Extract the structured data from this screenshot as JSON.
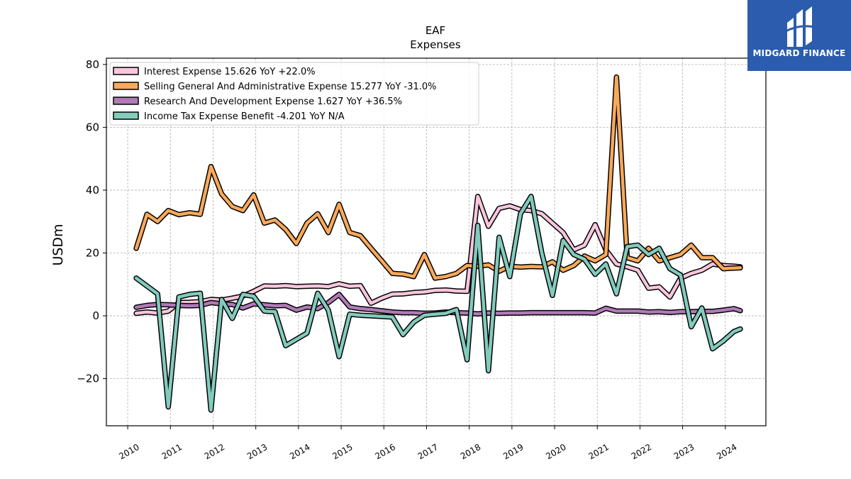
{
  "brand": {
    "name": "MIDGARD FINANCE",
    "colors": {
      "background": "#2b5cad",
      "text": "#ffffff"
    }
  },
  "chart_data": {
    "type": "line",
    "title": "EAF",
    "subtitle": "Expenses",
    "xlabel": "",
    "ylabel": "USDm",
    "xlim": [
      2009.5,
      2024.95
    ],
    "ylim": [
      -35,
      82
    ],
    "x_ticks": [
      2010,
      2011,
      2012,
      2013,
      2014,
      2015,
      2016,
      2017,
      2018,
      2019,
      2020,
      2021,
      2022,
      2023,
      2024
    ],
    "y_ticks": [
      -20,
      0,
      20,
      40,
      60,
      80
    ],
    "grid": true,
    "legend_position": "top-left",
    "series": [
      {
        "name": "Interest Expense  15.626 YoY +22.0%",
        "color": "#f9c6dd",
        "x": [
          2010.2,
          2010.45,
          2010.7,
          2010.95,
          2011.2,
          2011.45,
          2011.7,
          2011.95,
          2012.2,
          2012.45,
          2012.7,
          2012.95,
          2013.2,
          2013.45,
          2013.7,
          2013.95,
          2014.2,
          2014.45,
          2014.7,
          2014.95,
          2015.2,
          2015.45,
          2015.7,
          2015.95,
          2016.2,
          2016.45,
          2016.7,
          2016.95,
          2017.2,
          2017.45,
          2017.7,
          2017.95,
          2018.2,
          2018.45,
          2018.7,
          2018.95,
          2019.2,
          2019.45,
          2019.7,
          2019.95,
          2020.2,
          2020.45,
          2020.7,
          2020.95,
          2021.2,
          2021.45,
          2021.7,
          2021.95,
          2022.2,
          2022.45,
          2022.7,
          2022.95,
          2023.2,
          2023.45,
          2023.7,
          2023.95,
          2024.2,
          2024.35
        ],
        "values": [
          0.8,
          1.2,
          0.9,
          1.5,
          4.2,
          4.3,
          4.5,
          5.2,
          5.0,
          5.6,
          6.3,
          7.8,
          9.5,
          9.4,
          9.6,
          9.3,
          9.4,
          9.5,
          9.3,
          10.2,
          9.4,
          9.6,
          4.0,
          5.6,
          6.9,
          7.0,
          7.4,
          7.6,
          8.1,
          8.2,
          7.9,
          7.8,
          38.0,
          28.5,
          34.2,
          35.0,
          33.8,
          33.5,
          32.5,
          29.5,
          26.5,
          21.0,
          22.5,
          29.0,
          21.0,
          16.5,
          15.6,
          14.5,
          8.8,
          9.2,
          6.0,
          12.0,
          13.5,
          14.5,
          16.5,
          16.0,
          15.8,
          15.6
        ]
      },
      {
        "name": "Selling General And Administrative Expense  15.277 YoY -31.0%",
        "color": "#f9a95a",
        "x": [
          2010.2,
          2010.45,
          2010.7,
          2010.95,
          2011.2,
          2011.45,
          2011.7,
          2011.95,
          2012.2,
          2012.45,
          2012.7,
          2012.95,
          2013.2,
          2013.45,
          2013.7,
          2013.95,
          2014.2,
          2014.45,
          2014.7,
          2014.95,
          2015.2,
          2015.45,
          2015.7,
          2015.95,
          2016.2,
          2016.45,
          2016.7,
          2016.95,
          2017.2,
          2017.45,
          2017.7,
          2017.95,
          2018.2,
          2018.45,
          2018.7,
          2018.95,
          2019.2,
          2019.45,
          2019.7,
          2019.95,
          2020.2,
          2020.45,
          2020.7,
          2020.95,
          2021.2,
          2021.45,
          2021.7,
          2021.95,
          2022.2,
          2022.45,
          2022.7,
          2022.95,
          2023.2,
          2023.45,
          2023.7,
          2023.95,
          2024.2,
          2024.35
        ],
        "values": [
          21.5,
          32.3,
          30.0,
          33.5,
          32.2,
          32.8,
          32.3,
          47.5,
          38.8,
          34.8,
          33.5,
          38.5,
          29.5,
          30.5,
          27.5,
          23.0,
          29.5,
          32.5,
          26.5,
          35.5,
          26.5,
          25.5,
          21.5,
          17.5,
          13.5,
          13.3,
          12.5,
          19.5,
          12.0,
          12.5,
          13.5,
          16.0,
          15.8,
          16.2,
          14.2,
          15.8,
          15.5,
          15.7,
          15.6,
          17.2,
          14.5,
          16.0,
          19.0,
          17.5,
          19.5,
          76.0,
          18.5,
          17.5,
          21.5,
          17.5,
          18.5,
          19.5,
          22.5,
          18.5,
          18.5,
          15.0,
          15.2,
          15.277
        ]
      },
      {
        "name": "Research And Development Expense  1.627 YoY +36.5%",
        "color": "#b07ab8",
        "x": [
          2010.2,
          2010.45,
          2010.7,
          2010.95,
          2011.2,
          2011.45,
          2011.7,
          2011.95,
          2012.2,
          2012.45,
          2012.7,
          2012.95,
          2013.2,
          2013.45,
          2013.7,
          2013.95,
          2014.2,
          2014.45,
          2014.7,
          2014.95,
          2015.2,
          2015.45,
          2015.7,
          2015.95,
          2016.2,
          2016.45,
          2016.7,
          2016.95,
          2017.2,
          2017.45,
          2017.7,
          2017.95,
          2018.2,
          2018.45,
          2018.7,
          2018.95,
          2019.2,
          2019.45,
          2019.7,
          2019.95,
          2020.2,
          2020.45,
          2020.7,
          2020.95,
          2021.2,
          2021.45,
          2021.7,
          2021.95,
          2022.2,
          2022.45,
          2022.7,
          2022.95,
          2023.2,
          2023.45,
          2023.7,
          2023.95,
          2024.2,
          2024.35
        ],
        "values": [
          2.7,
          3.3,
          3.6,
          3.5,
          3.3,
          3.2,
          3.3,
          4.2,
          3.8,
          3.6,
          2.5,
          3.8,
          3.5,
          3.2,
          3.3,
          1.8,
          2.8,
          2.3,
          4.2,
          6.8,
          2.8,
          2.3,
          2.0,
          1.6,
          1.2,
          1.0,
          1.0,
          0.8,
          0.9,
          1.2,
          1.0,
          0.9,
          0.6,
          0.9,
          0.8,
          0.9,
          0.9,
          1.0,
          1.0,
          1.0,
          1.0,
          1.0,
          1.0,
          0.9,
          2.4,
          1.5,
          1.5,
          1.5,
          1.2,
          1.3,
          1.1,
          1.3,
          1.3,
          1.4,
          1.4,
          1.8,
          2.3,
          1.627
        ]
      },
      {
        "name": "Income Tax Expense Benefit  -4.201 YoY N/A",
        "color": "#82cbbd",
        "x": [
          2010.2,
          2010.45,
          2010.7,
          2010.95,
          2011.2,
          2011.45,
          2011.7,
          2011.95,
          2012.2,
          2012.45,
          2012.7,
          2012.95,
          2013.2,
          2013.45,
          2013.7,
          2013.95,
          2014.2,
          2014.45,
          2014.7,
          2014.95,
          2015.2,
          2015.45,
          2015.7,
          2015.95,
          2016.2,
          2016.45,
          2016.7,
          2016.95,
          2017.2,
          2017.45,
          2017.7,
          2017.95,
          2018.2,
          2018.45,
          2018.7,
          2018.95,
          2019.2,
          2019.45,
          2019.7,
          2019.95,
          2020.2,
          2020.45,
          2020.7,
          2020.95,
          2021.2,
          2021.45,
          2021.7,
          2021.95,
          2022.2,
          2022.45,
          2022.7,
          2022.95,
          2023.2,
          2023.45,
          2023.7,
          2023.95,
          2024.2,
          2024.35
        ],
        "values": [
          12.0,
          9.5,
          7.0,
          -29.0,
          6.0,
          6.8,
          7.2,
          -30.0,
          5.2,
          -0.8,
          6.8,
          6.2,
          1.5,
          1.3,
          -9.5,
          -7.5,
          -5.5,
          7.2,
          1.8,
          -13.0,
          0.5,
          0.2,
          0.0,
          -0.2,
          -0.4,
          -6.0,
          -2.0,
          0.2,
          0.5,
          0.8,
          2.0,
          -14.0,
          28.8,
          -17.5,
          25.0,
          12.5,
          32.5,
          38.0,
          20.0,
          6.5,
          24.0,
          19.5,
          18.0,
          13.2,
          16.5,
          7.0,
          22.0,
          22.5,
          19.5,
          21.5,
          15.0,
          13.0,
          -3.5,
          2.5,
          -10.5,
          -8.0,
          -5.0,
          -4.201
        ]
      }
    ]
  }
}
